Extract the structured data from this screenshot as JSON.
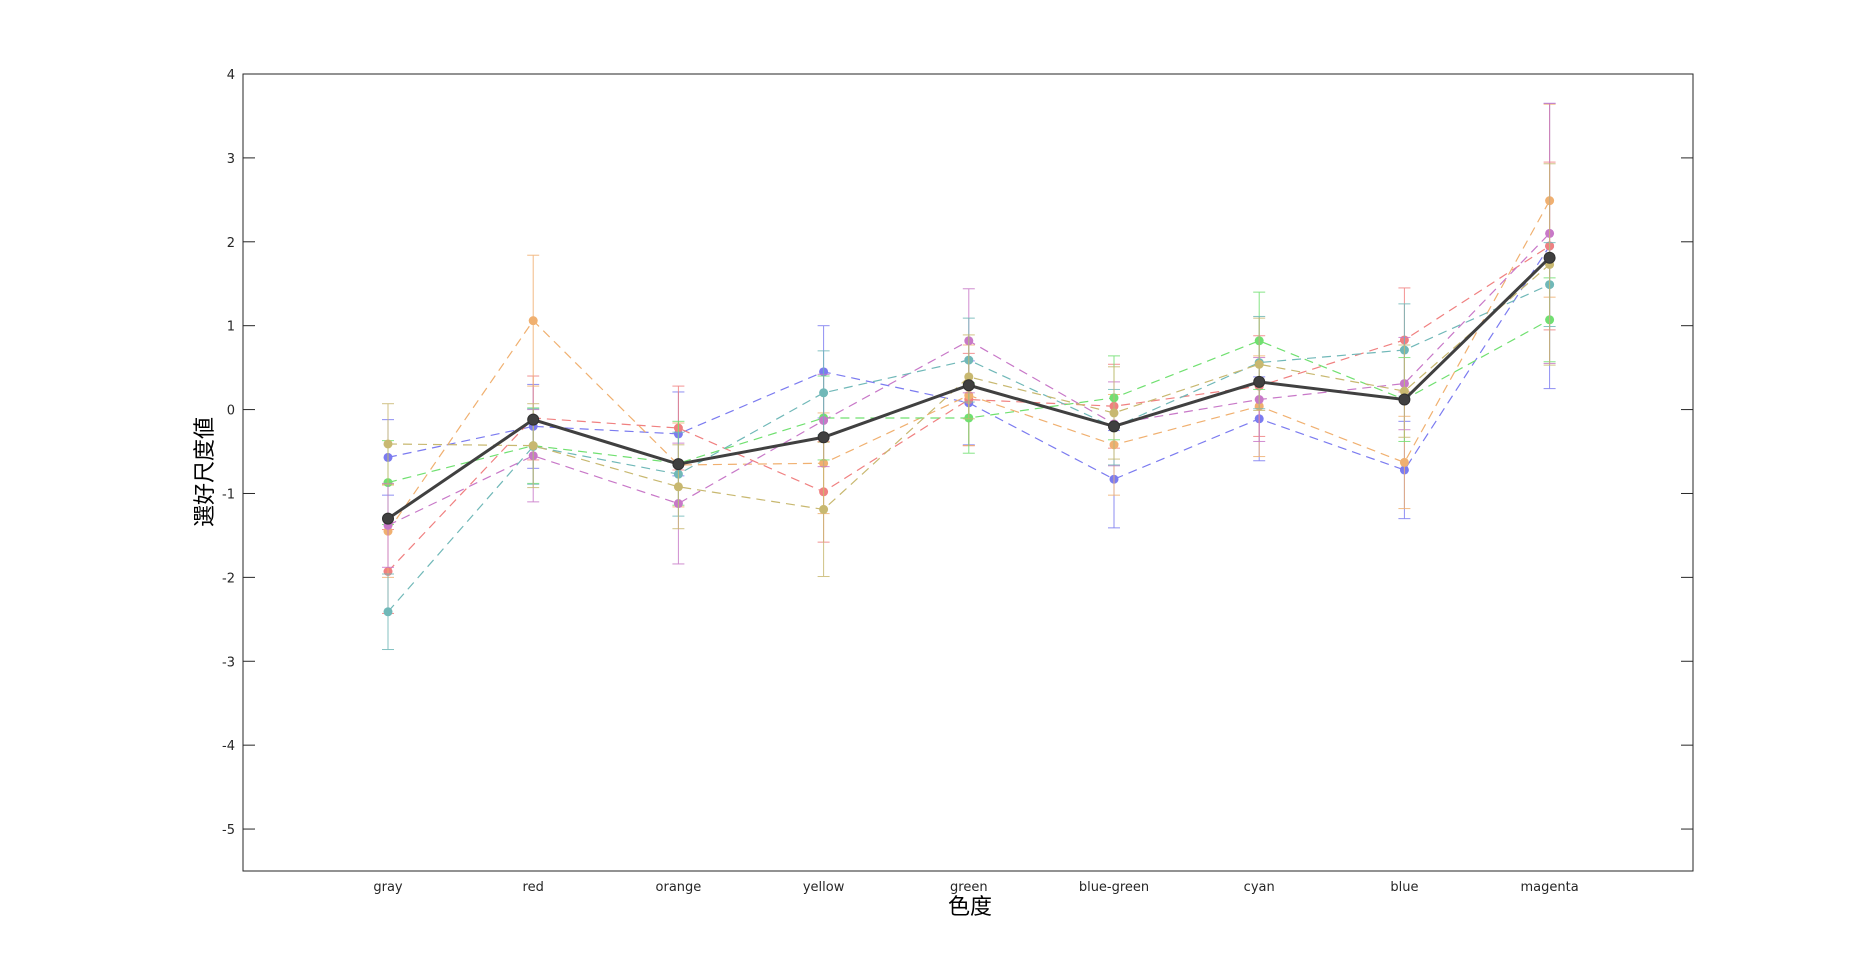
{
  "chart_data": {
    "type": "line",
    "xlabel": "色度",
    "ylabel": "選好尺度値",
    "categories": [
      "gray",
      "red",
      "orange",
      "yellow",
      "green",
      "blue-green",
      "cyan",
      "blue",
      "magenta"
    ],
    "ylim": [
      -5.5,
      4
    ],
    "yticks": [
      4,
      3,
      2,
      1,
      0,
      -1,
      -2,
      -3,
      -4,
      -5
    ],
    "ytick_labels": [
      "4",
      "3",
      "2",
      "1",
      "0",
      "-1",
      "-2",
      "-3",
      "-4",
      "-5"
    ],
    "grid": false,
    "legend": "none",
    "series": [
      {
        "color": "#7b7bf0",
        "values": [
          -0.57,
          -0.2,
          -0.29,
          0.45,
          0.08,
          -0.83,
          -0.11,
          -0.72,
          1.95
        ],
        "errors": [
          0.45,
          0.5,
          0.5,
          0.55,
          0.5,
          0.58,
          0.5,
          0.58,
          1.7
        ]
      },
      {
        "color": "#f08080",
        "values": [
          -1.93,
          -0.1,
          -0.22,
          -0.98,
          0.12,
          0.04,
          0.28,
          0.83,
          1.95
        ],
        "errors": [
          0.5,
          0.5,
          0.5,
          0.6,
          0.55,
          0.5,
          0.6,
          0.62,
          1.0
        ]
      },
      {
        "color": "#f0b070",
        "values": [
          -1.45,
          1.06,
          -0.66,
          -0.64,
          0.17,
          -0.42,
          0.04,
          -0.63,
          2.49
        ],
        "errors": [
          0.55,
          0.78,
          0.5,
          0.6,
          0.6,
          0.6,
          0.6,
          0.55,
          1.15
        ]
      },
      {
        "color": "#70e070",
        "values": [
          -0.87,
          -0.43,
          -0.64,
          -0.1,
          -0.1,
          0.14,
          0.82,
          0.12,
          1.07
        ],
        "errors": [
          0.5,
          0.45,
          0.5,
          0.5,
          0.42,
          0.5,
          0.58,
          0.5,
          0.5
        ]
      },
      {
        "color": "#c878c8",
        "values": [
          -1.38,
          -0.55,
          -1.12,
          -0.13,
          0.82,
          -0.17,
          0.12,
          0.31,
          2.1
        ],
        "errors": [
          0.5,
          0.55,
          0.72,
          0.55,
          0.62,
          0.5,
          0.5,
          0.55,
          1.55
        ]
      },
      {
        "color": "#70b8b8",
        "values": [
          -2.41,
          -0.44,
          -0.77,
          0.2,
          0.59,
          -0.21,
          0.56,
          0.71,
          1.49
        ],
        "errors": [
          0.45,
          0.45,
          0.5,
          0.5,
          0.5,
          0.45,
          0.55,
          0.55,
          0.5
        ]
      },
      {
        "color": "#c8b870",
        "values": [
          -0.41,
          -0.43,
          -0.92,
          -1.19,
          0.39,
          -0.04,
          0.54,
          0.22,
          1.73
        ],
        "errors": [
          0.48,
          0.5,
          0.5,
          0.8,
          0.5,
          0.55,
          0.55,
          0.55,
          1.2
        ]
      },
      {
        "color": "#404040",
        "values": [
          -1.3,
          -0.12,
          -0.65,
          -0.33,
          0.29,
          -0.2,
          0.33,
          0.12,
          1.81
        ],
        "bold": true
      }
    ]
  }
}
